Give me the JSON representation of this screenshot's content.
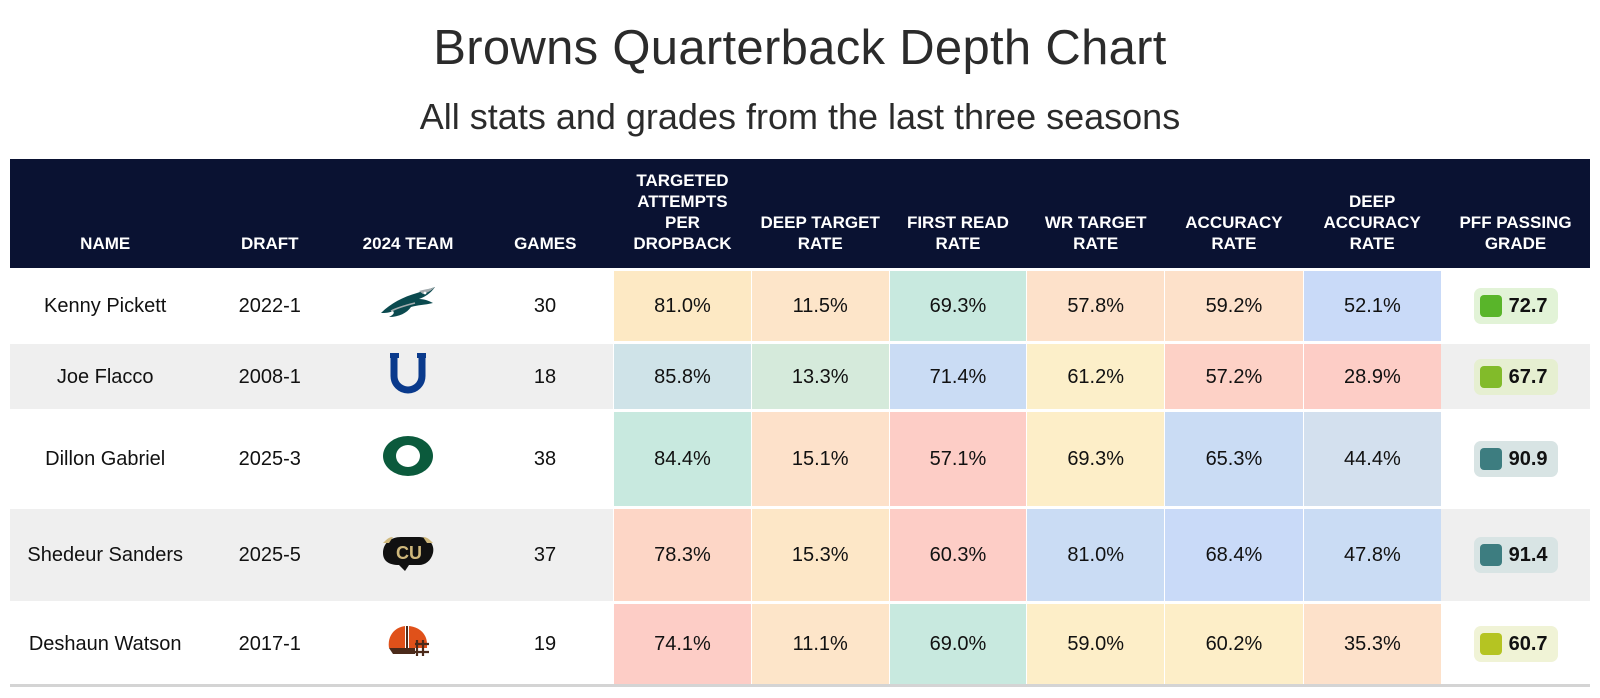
{
  "title": "Browns Quarterback Depth Chart",
  "subtitle": "All stats and grades from the last three seasons",
  "chart_data": {
    "type": "table",
    "columns": [
      "NAME",
      "DRAFT",
      "2024 TEAM",
      "GAMES",
      "TARGETED ATTEMPTS PER DROPBACK",
      "DEEP TARGET RATE",
      "FIRST READ RATE",
      "WR TARGET RATE",
      "ACCURACY RATE",
      "DEEP ACCURACY RATE",
      "PFF PASSING GRADE"
    ],
    "rows": [
      {
        "name": "Kenny Pickett",
        "draft": "2022-1",
        "team_logo": "philadelphia-eagles-icon",
        "games": "30",
        "metrics": [
          "81.0%",
          "11.5%",
          "69.3%",
          "57.8%",
          "59.2%",
          "52.1%"
        ],
        "metric_colors": [
          "#fde9c4",
          "#fde5c9",
          "#c8e9df",
          "#fde1ca",
          "#fde1ca",
          "#c9daf8"
        ],
        "grade": "72.7",
        "grade_color": "#59b52a",
        "grade_bg": "#e2f3d7"
      },
      {
        "name": "Joe Flacco",
        "draft": "2008-1",
        "team_logo": "indianapolis-colts-icon",
        "games": "18",
        "metrics": [
          "85.8%",
          "13.3%",
          "71.4%",
          "61.2%",
          "57.2%",
          "28.9%"
        ],
        "metric_colors": [
          "#cfe3e8",
          "#d5eadb",
          "#cadcf4",
          "#fcefc9",
          "#fdd1c6",
          "#fdcdc6"
        ],
        "grade": "67.7",
        "grade_color": "#82bb2a",
        "grade_bg": "#e6efd1"
      },
      {
        "name": "Dillon Gabriel",
        "draft": "2025-3",
        "team_logo": "oregon-ducks-icon",
        "games": "38",
        "metrics": [
          "84.4%",
          "15.1%",
          "57.1%",
          "69.3%",
          "65.3%",
          "44.4%"
        ],
        "metric_colors": [
          "#c8e9df",
          "#fde1ca",
          "#fdcdc6",
          "#fdeec8",
          "#cadcf4",
          "#d3e0ee"
        ],
        "grade": "90.9",
        "grade_color": "#3d7d80",
        "grade_bg": "#d8e4e4"
      },
      {
        "name": "Shedeur Sanders",
        "draft": "2025-5",
        "team_logo": "colorado-buffaloes-icon",
        "games": "37",
        "metrics": [
          "78.3%",
          "15.3%",
          "60.3%",
          "81.0%",
          "68.4%",
          "47.8%"
        ],
        "metric_colors": [
          "#fdd6c6",
          "#fde7c7",
          "#fdcdc6",
          "#cadcf4",
          "#c9daf8",
          "#cadcf4"
        ],
        "grade": "91.4",
        "grade_color": "#3d7d80",
        "grade_bg": "#d8e4e4"
      },
      {
        "name": "Deshaun Watson",
        "draft": "2017-1",
        "team_logo": "cleveland-browns-icon",
        "games": "19",
        "metrics": [
          "74.1%",
          "11.1%",
          "69.0%",
          "59.0%",
          "60.2%",
          "35.3%"
        ],
        "metric_colors": [
          "#fdcdc6",
          "#fde5c9",
          "#c8e9df",
          "#fdeec8",
          "#fdeec8",
          "#fde1ca"
        ],
        "grade": "60.7",
        "grade_color": "#b5c422",
        "grade_bg": "#f0f3d6"
      }
    ]
  }
}
